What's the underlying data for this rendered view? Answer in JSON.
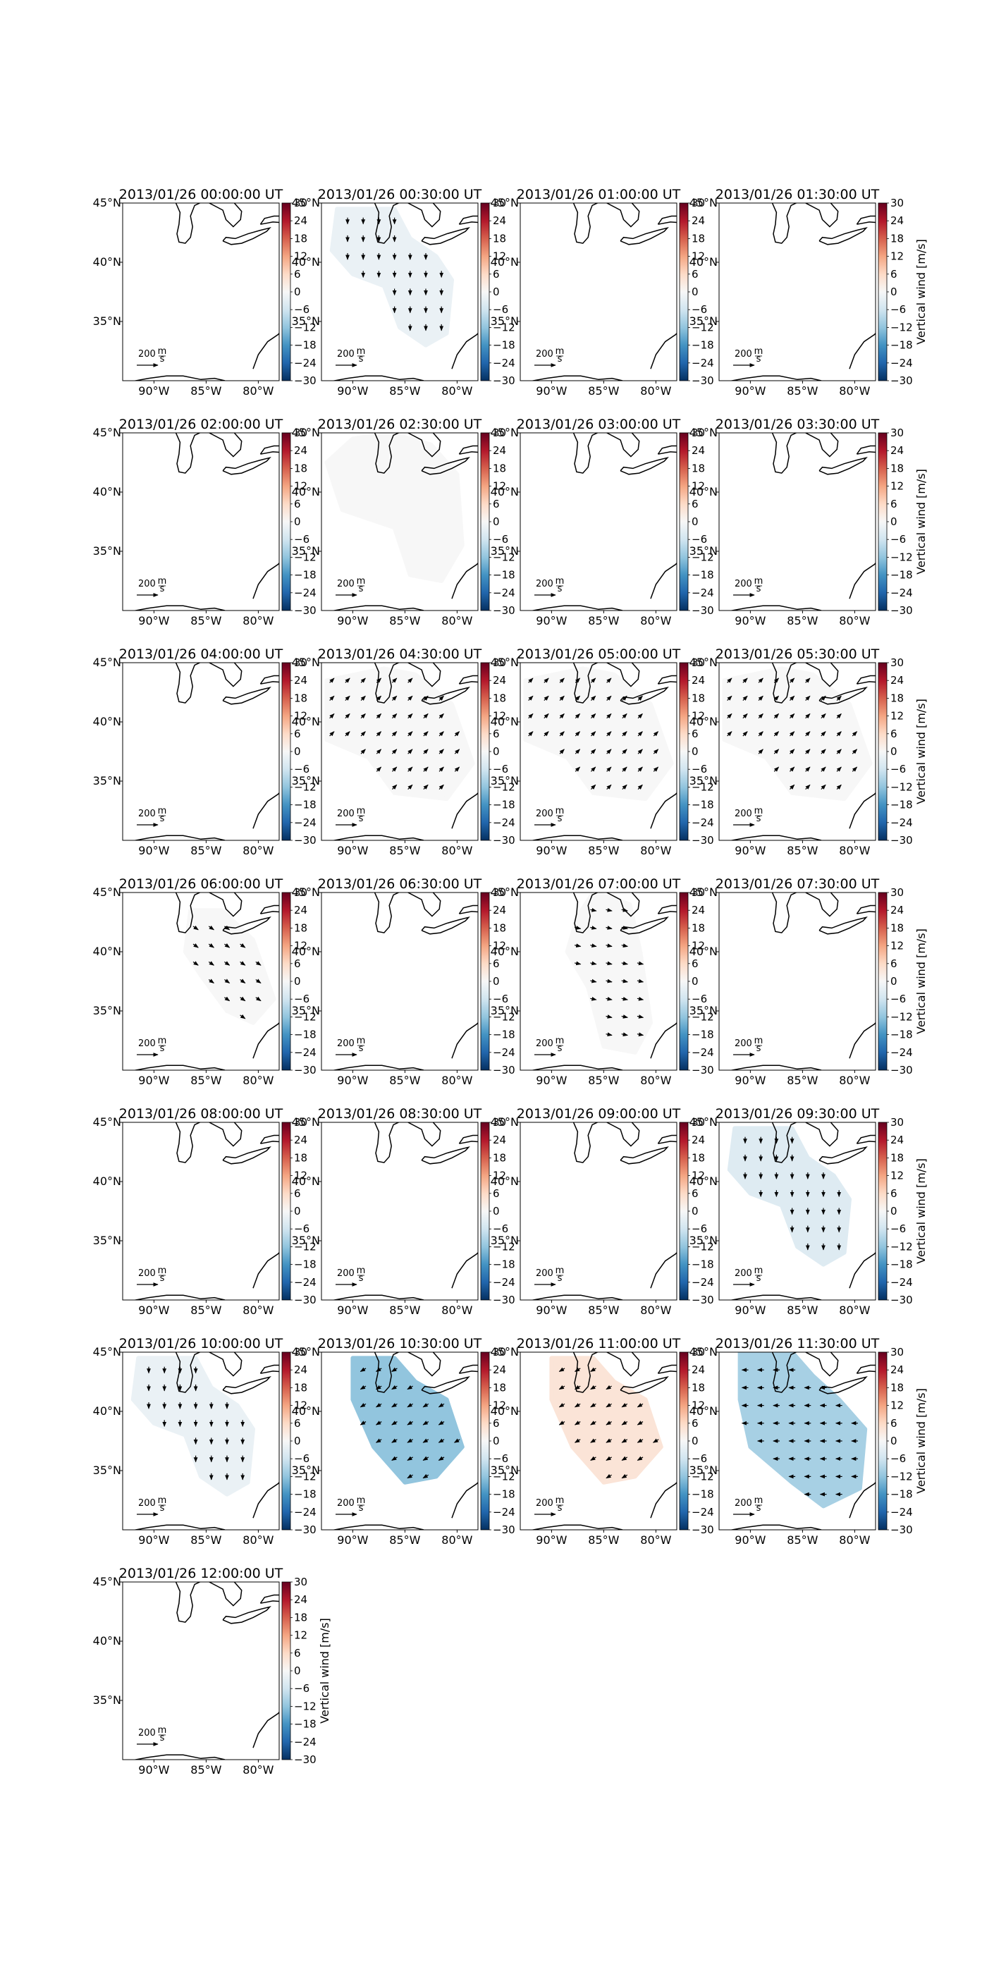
{
  "figure": {
    "colorbar_label": "Vertical wind [m/s]",
    "colorbar_ticks": [
      "30",
      "24",
      "18",
      "12",
      "6",
      "0",
      "−6",
      "−12",
      "−18",
      "−24",
      "−30"
    ],
    "colormap": [
      "#67001f",
      "#b2182b",
      "#d6604d",
      "#f4a582",
      "#fddbc7",
      "#f7f7f7",
      "#d1e5f0",
      "#92c5de",
      "#4393c3",
      "#2166ac",
      "#053061"
    ],
    "x_ticks": [
      "90°W",
      "85°W",
      "80°W"
    ],
    "y_ticks": [
      "45°N",
      "40°N",
      "35°N"
    ],
    "scale_value": "200",
    "scale_units_top": "m",
    "scale_units_bottom": "s"
  },
  "chart_data": {
    "type": "heatmap",
    "panels": [
      {
        "title": "2013/01/26 00:00:00 UT",
        "vertical_wind": null,
        "wind_direction": null
      },
      {
        "title": "2013/01/26 00:30:00 UT",
        "vertical_wind": -2,
        "wind_direction": "south"
      },
      {
        "title": "2013/01/26 01:00:00 UT",
        "vertical_wind": null,
        "wind_direction": null
      },
      {
        "title": "2013/01/26 01:30:00 UT",
        "vertical_wind": null,
        "wind_direction": null
      },
      {
        "title": "2013/01/26 02:00:00 UT",
        "vertical_wind": null,
        "wind_direction": null
      },
      {
        "title": "2013/01/26 02:30:00 UT",
        "vertical_wind": 0,
        "wind_direction": "calm"
      },
      {
        "title": "2013/01/26 03:00:00 UT",
        "vertical_wind": null,
        "wind_direction": null
      },
      {
        "title": "2013/01/26 03:30:00 UT",
        "vertical_wind": null,
        "wind_direction": null
      },
      {
        "title": "2013/01/26 04:00:00 UT",
        "vertical_wind": null,
        "wind_direction": null
      },
      {
        "title": "2013/01/26 04:30:00 UT",
        "vertical_wind": 0,
        "wind_direction": "northeast"
      },
      {
        "title": "2013/01/26 05:00:00 UT",
        "vertical_wind": 0,
        "wind_direction": "northeast"
      },
      {
        "title": "2013/01/26 05:30:00 UT",
        "vertical_wind": 0,
        "wind_direction": "northeast"
      },
      {
        "title": "2013/01/26 06:00:00 UT",
        "vertical_wind": 0,
        "wind_direction": "southeast"
      },
      {
        "title": "2013/01/26 06:30:00 UT",
        "vertical_wind": null,
        "wind_direction": null
      },
      {
        "title": "2013/01/26 07:00:00 UT",
        "vertical_wind": 0,
        "wind_direction": "east"
      },
      {
        "title": "2013/01/26 07:30:00 UT",
        "vertical_wind": null,
        "wind_direction": null
      },
      {
        "title": "2013/01/26 08:00:00 UT",
        "vertical_wind": null,
        "wind_direction": null
      },
      {
        "title": "2013/01/26 08:30:00 UT",
        "vertical_wind": null,
        "wind_direction": null
      },
      {
        "title": "2013/01/26 09:00:00 UT",
        "vertical_wind": null,
        "wind_direction": null
      },
      {
        "title": "2013/01/26 09:30:00 UT",
        "vertical_wind": -4,
        "wind_direction": "south"
      },
      {
        "title": "2013/01/26 10:00:00 UT",
        "vertical_wind": -2,
        "wind_direction": "south"
      },
      {
        "title": "2013/01/26 10:30:00 UT",
        "vertical_wind": -12,
        "wind_direction": "southwest"
      },
      {
        "title": "2013/01/26 11:00:00 UT",
        "vertical_wind": 4,
        "wind_direction": "southwest"
      },
      {
        "title": "2013/01/26 11:30:00 UT",
        "vertical_wind": -10,
        "wind_direction": "west"
      },
      {
        "title": "2013/01/26 12:00:00 UT",
        "vertical_wind": null,
        "wind_direction": null
      }
    ],
    "xlim": [
      -93,
      -78
    ],
    "ylim": [
      30,
      45
    ],
    "clim": [
      -30,
      30
    ],
    "colorbar_label": "Vertical wind [m/s]"
  }
}
